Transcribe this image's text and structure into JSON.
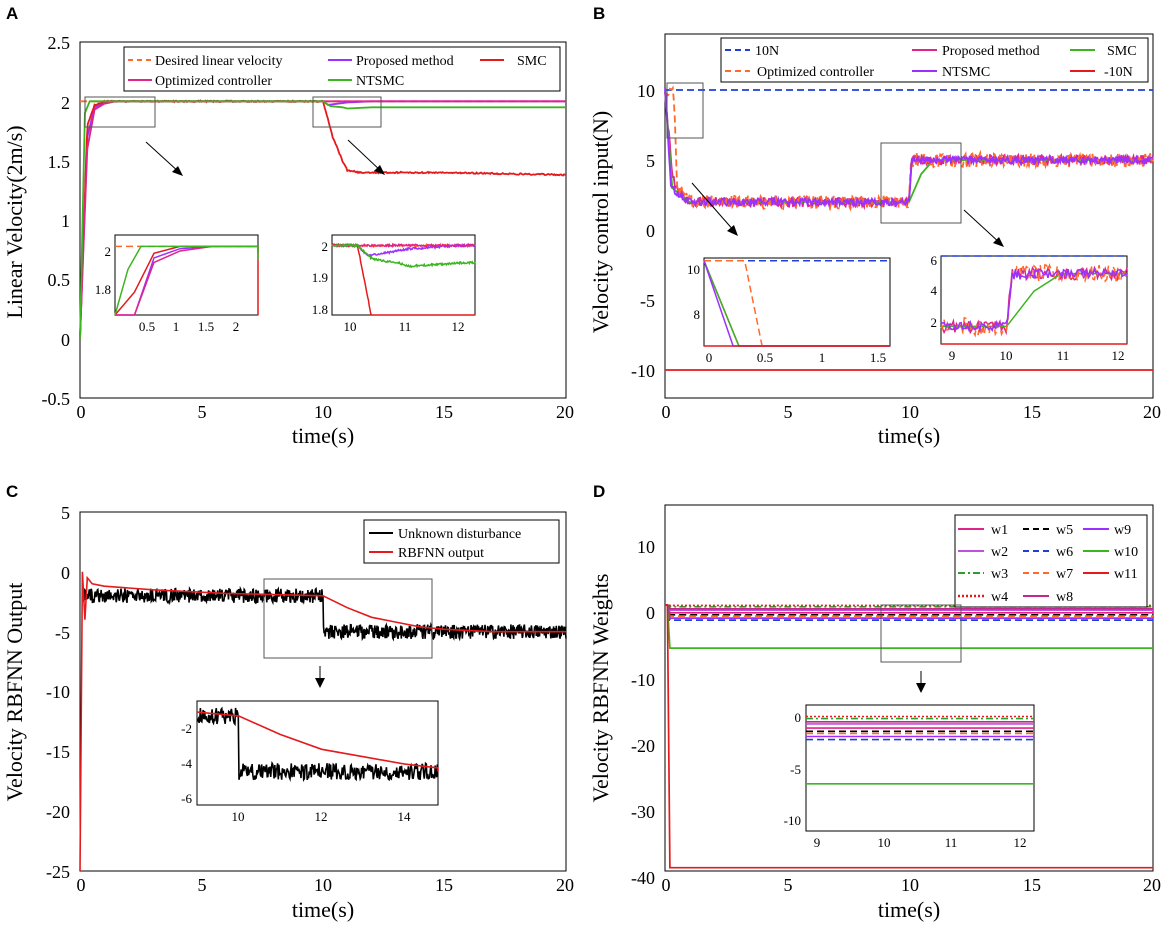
{
  "chart_data": [
    {
      "panel": "A",
      "type": "line",
      "xlabel": "time(s)",
      "ylabel": "Linear Velocity(2m/s)",
      "xlim": [
        0,
        20
      ],
      "ylim": [
        -0.5,
        2.5
      ],
      "xticks": [
        "0",
        "5",
        "10",
        "15",
        "20"
      ],
      "yticks": [
        "-0.5",
        "0",
        "0.5",
        "1",
        "1.5",
        "2",
        "2.5"
      ],
      "legend_position": "top",
      "legend": [
        "Desired linear velocity",
        "Proposed method",
        "SMC",
        "Optimized controller",
        "NTSMC"
      ],
      "series": [
        {
          "name": "Desired linear velocity",
          "color": "#ff6a2a",
          "dash": "dashed",
          "x": [
            0,
            20
          ],
          "y": [
            2,
            2
          ]
        },
        {
          "name": "Proposed method",
          "color": "#9b30ff",
          "x": [
            0,
            0.3,
            0.6,
            1,
            1.5,
            2,
            10,
            10.2,
            10.6,
            11,
            12,
            20
          ],
          "y": [
            0,
            1.7,
            1.95,
            1.99,
            2,
            2,
            2,
            1.97,
            1.98,
            1.99,
            2,
            2
          ]
        },
        {
          "name": "SMC",
          "color": "#e41a1c",
          "x": [
            0,
            0.3,
            0.6,
            1,
            2,
            10,
            10.4,
            10.8,
            11,
            11.5,
            12,
            15,
            20
          ],
          "y": [
            0,
            1.8,
            1.97,
            2,
            2,
            2,
            1.7,
            1.5,
            1.42,
            1.4,
            1.4,
            1.4,
            1.38
          ]
        },
        {
          "name": "Optimized controller",
          "color": "#e0248a",
          "x": [
            0,
            0.3,
            0.6,
            1,
            1.5,
            2,
            10,
            12,
            20
          ],
          "y": [
            0,
            1.6,
            1.93,
            1.98,
            2,
            2,
            2,
            2,
            2
          ]
        },
        {
          "name": "NTSMC",
          "color": "#3cb521",
          "x": [
            0,
            0.2,
            0.4,
            2,
            10,
            10.3,
            10.8,
            11,
            12,
            20
          ],
          "y": [
            0,
            1.9,
            2,
            2,
            2,
            1.96,
            1.95,
            1.94,
            1.95,
            1.95
          ]
        }
      ],
      "inset_1": {
        "xlim": [
          0,
          2.2
        ],
        "ylim": [
          1.7,
          2.05
        ],
        "xticks": [
          "0.5",
          "1",
          "1.5",
          "2"
        ],
        "yticks": [
          "1.8",
          "2"
        ]
      },
      "inset_2": {
        "xlim": [
          9.5,
          12.3
        ],
        "ylim": [
          1.8,
          2.03
        ],
        "xticks": [
          "10",
          "11",
          "12"
        ],
        "yticks": [
          "1.8",
          "1.9",
          "2"
        ]
      }
    },
    {
      "panel": "B",
      "type": "line",
      "xlabel": "time(s)",
      "ylabel": "Velocity control input(N)",
      "xlim": [
        0,
        20
      ],
      "ylim": [
        -12,
        14
      ],
      "xticks": [
        "0",
        "5",
        "10",
        "15",
        "20"
      ],
      "yticks": [
        "-10",
        "-5",
        "0",
        "5",
        "10"
      ],
      "legend_position": "top",
      "legend": [
        "10N",
        "Proposed method",
        "SMC",
        "Optimized controller",
        "NTSMC",
        "-10N"
      ],
      "series": [
        {
          "name": "10N",
          "color": "#1f3fd6",
          "dash": "dashed",
          "x": [
            0,
            20
          ],
          "y": [
            10,
            10
          ]
        },
        {
          "name": "Proposed method",
          "color": "#e0248a",
          "x": [
            0,
            0.3,
            0.6,
            1,
            10,
            10.1,
            20
          ],
          "y": [
            10,
            4,
            2.5,
            2,
            2,
            5,
            5
          ]
        },
        {
          "name": "SMC",
          "color": "#3cb521",
          "x": [
            0,
            0.3,
            1,
            10,
            10.5,
            11,
            20
          ],
          "y": [
            10,
            3,
            2,
            2,
            4,
            5,
            5
          ]
        },
        {
          "name": "Optimized controller",
          "color": "#ff6a2a",
          "dash": "dashed",
          "x": [
            0,
            0.35,
            0.5,
            1,
            10,
            10.1,
            20
          ],
          "y": [
            10,
            10,
            3,
            2,
            2,
            5,
            5
          ]
        },
        {
          "name": "NTSMC",
          "color": "#9b30ff",
          "x": [
            0,
            0.25,
            1,
            10,
            10.1,
            20
          ],
          "y": [
            10,
            3,
            2,
            2,
            5,
            5
          ]
        },
        {
          "name": "-10N",
          "color": "#e41a1c",
          "x": [
            0,
            20
          ],
          "y": [
            -10,
            -10
          ]
        }
      ],
      "inset_1": {
        "xlim": [
          0,
          1.6
        ],
        "ylim": [
          7,
          10.1
        ],
        "xticks": [
          "0",
          "0.5",
          "1",
          "1.5"
        ],
        "yticks": [
          "8",
          "10"
        ]
      },
      "inset_2": {
        "xlim": [
          8.8,
          12.2
        ],
        "ylim": [
          1,
          6
        ],
        "xticks": [
          "9",
          "10",
          "11",
          "12"
        ],
        "yticks": [
          "2",
          "4",
          "6"
        ]
      }
    },
    {
      "panel": "C",
      "type": "line",
      "xlabel": "time(s)",
      "ylabel": "Velocity RBFNN Output",
      "xlim": [
        0,
        20
      ],
      "ylim": [
        -25,
        5
      ],
      "xticks": [
        "0",
        "5",
        "10",
        "15",
        "20"
      ],
      "yticks": [
        "-25",
        "-20",
        "-15",
        "-10",
        "-5",
        "0",
        "5"
      ],
      "legend_position": "top-right",
      "legend": [
        "Unknown disturbance",
        "RBFNN output"
      ],
      "series": [
        {
          "name": "Unknown disturbance",
          "color": "#000000",
          "x": [
            0.15,
            10,
            10,
            20
          ],
          "y": [
            -2,
            -2,
            -5,
            -5
          ]
        },
        {
          "name": "RBFNN output",
          "color": "#e41a1c",
          "x": [
            0,
            0.1,
            0.2,
            0.3,
            0.5,
            1,
            3,
            6,
            10,
            11,
            12,
            13,
            14,
            15,
            17,
            20
          ],
          "y": [
            -25,
            0,
            -4,
            -0.5,
            -1,
            -1.2,
            -1.5,
            -1.8,
            -2,
            -3,
            -3.8,
            -4.2,
            -4.6,
            -4.8,
            -5,
            -5
          ]
        }
      ],
      "inset_1": {
        "xlim": [
          9,
          14.8
        ],
        "ylim": [
          -6.8,
          -1.2
        ],
        "xticks": [
          "10",
          "12",
          "14"
        ],
        "yticks": [
          "-2",
          "-4",
          "-6"
        ]
      }
    },
    {
      "panel": "D",
      "type": "line",
      "xlabel": "time(s)",
      "ylabel": "Velocity RBFNN Weights",
      "xlim": [
        0,
        20
      ],
      "ylim": [
        -40,
        15
      ],
      "xticks": [
        "0",
        "5",
        "10",
        "15",
        "20"
      ],
      "yticks": [
        "-40",
        "-30",
        "-20",
        "-10",
        "0",
        "10"
      ],
      "legend_position": "top-right",
      "legend": [
        "w1",
        "w5",
        "w9",
        "w2",
        "w6",
        "w10",
        "w3",
        "w7",
        "w11",
        "w4",
        "w8"
      ],
      "series": [
        {
          "name": "w1",
          "color": "#e0248a",
          "y": -1.2
        },
        {
          "name": "w2",
          "color": "#c050e0",
          "y": -0.8
        },
        {
          "name": "w3",
          "color": "#2ca02c",
          "dash": "dashdot",
          "y": -0.3
        },
        {
          "name": "w4",
          "color": "#e41a1c",
          "dash": "dotted",
          "y": -0.1
        },
        {
          "name": "w5",
          "color": "#000000",
          "dash": "dashed",
          "y": -1.5
        },
        {
          "name": "w6",
          "color": "#1f3fd6",
          "dash": "dashed",
          "y": -2.3
        },
        {
          "name": "w7",
          "color": "#ff6a2a",
          "dash": "dashed",
          "y": -1.7
        },
        {
          "name": "w8",
          "color": "#c0288a",
          "y": -0.6
        },
        {
          "name": "w9",
          "color": "#9b30ff",
          "y": -2.0
        },
        {
          "name": "w10",
          "color": "#3cb521",
          "y": -6.5
        },
        {
          "name": "w11",
          "color": "#e41a1c",
          "y": -39.5
        }
      ],
      "inset_1": {
        "xlim": [
          8.8,
          12.2
        ],
        "ylim": [
          -11,
          1
        ],
        "xticks": [
          "9",
          "10",
          "11",
          "12"
        ],
        "yticks": [
          "0",
          "-5",
          "-10"
        ]
      }
    }
  ]
}
